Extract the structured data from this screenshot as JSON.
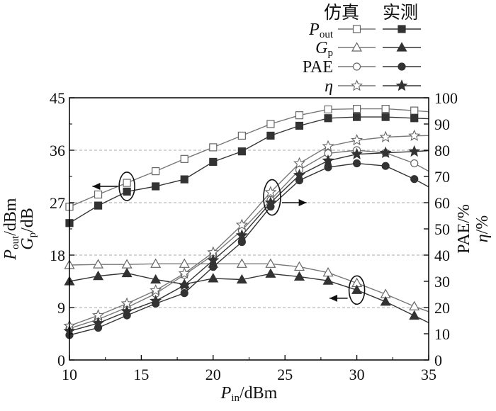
{
  "chart_data": {
    "type": "line",
    "legend": {
      "placement": "top-right",
      "headers": [
        "仿真",
        "实测"
      ],
      "entries": [
        {
          "main": "P",
          "sub": "out",
          "italic": true
        },
        {
          "main": "G",
          "sub": "p",
          "italic": true
        },
        {
          "main": "PAE",
          "sub": "",
          "italic": false
        },
        {
          "main": "η",
          "sub": "",
          "italic": true
        }
      ]
    },
    "axes": {
      "x": {
        "label_main": "P",
        "label_sub": "in",
        "label_unit": "/dBm",
        "range": [
          10,
          35
        ],
        "ticks": [
          10,
          15,
          20,
          25,
          30,
          35
        ]
      },
      "y_left": {
        "label1_main": "P",
        "label1_sub": "out",
        "label1_unit": "/dBm",
        "label2_main": "G",
        "label2_sub": "p",
        "label2_unit": "/dB",
        "range": [
          0,
          45
        ],
        "ticks": [
          0,
          9,
          18,
          27,
          36,
          45
        ]
      },
      "y_right": {
        "label1": "PAE/%",
        "label2_main": "η",
        "label2_unit": "/%",
        "range": [
          0,
          100
        ],
        "ticks": [
          0,
          10,
          20,
          30,
          40,
          50,
          60,
          70,
          80,
          90,
          100
        ]
      }
    },
    "grid": {
      "horizontal_dashed_at_left_values": [
        9,
        18,
        27,
        36
      ]
    },
    "colors": {
      "simulated_line": "#777777",
      "measured_line": "#333333",
      "marker_fill": "#333333",
      "annotation": "#111111"
    },
    "series": [
      {
        "name": "P_out",
        "group": "仿真",
        "axis": "left",
        "marker": "open-square",
        "x": [
          10,
          12,
          14,
          16,
          18,
          20,
          22,
          24,
          26,
          28,
          30,
          32,
          34,
          35
        ],
        "y": [
          26.3,
          28.4,
          30.4,
          32.4,
          34.5,
          36.5,
          38.5,
          40.5,
          42.0,
          43.0,
          43.1,
          43.1,
          42.8,
          42.6
        ]
      },
      {
        "name": "P_out",
        "group": "实测",
        "axis": "left",
        "marker": "filled-square",
        "x": [
          10,
          12,
          14,
          16,
          18,
          20,
          22,
          24,
          26,
          28,
          30,
          32,
          34,
          35
        ],
        "y": [
          23.5,
          26.5,
          28.9,
          29.8,
          31.0,
          34.0,
          35.8,
          38.5,
          40.2,
          41.5,
          41.7,
          41.7,
          41.5,
          41.4
        ]
      },
      {
        "name": "G_p",
        "group": "仿真",
        "axis": "left",
        "marker": "open-triangle",
        "x": [
          10,
          12,
          14,
          16,
          18,
          20,
          22,
          24,
          26,
          28,
          30,
          32,
          34,
          35
        ],
        "y": [
          16.3,
          16.4,
          16.4,
          16.5,
          16.5,
          16.5,
          16.5,
          16.5,
          16.0,
          15.0,
          13.2,
          11.3,
          9.2,
          8.3
        ]
      },
      {
        "name": "G_p",
        "group": "实测",
        "axis": "left",
        "marker": "filled-triangle",
        "x": [
          10,
          12,
          14,
          16,
          18,
          20,
          22,
          24,
          26,
          28,
          30,
          32,
          34,
          35
        ],
        "y": [
          13.5,
          14.4,
          14.9,
          13.8,
          13.0,
          14.0,
          13.8,
          14.8,
          14.3,
          13.6,
          12.0,
          10.0,
          7.6,
          6.4
        ]
      },
      {
        "name": "PAE",
        "group": "仿真",
        "axis": "right",
        "marker": "open-circle",
        "x": [
          10,
          12,
          14,
          16,
          18,
          20,
          22,
          24,
          26,
          28,
          30,
          32,
          34,
          35
        ],
        "y": [
          12.0,
          15.5,
          20.0,
          25.3,
          32.5,
          40.0,
          49.5,
          61.0,
          72.5,
          78.8,
          80.0,
          79.0,
          75.0,
          72.0
        ]
      },
      {
        "name": "PAE",
        "group": "实测",
        "axis": "right",
        "marker": "filled-circle",
        "x": [
          10,
          12,
          14,
          16,
          18,
          20,
          22,
          24,
          26,
          28,
          30,
          32,
          34,
          35
        ],
        "y": [
          9.5,
          12.3,
          17.0,
          21.5,
          25.5,
          35.5,
          45.0,
          58.5,
          68.5,
          73.5,
          75.0,
          74.0,
          69.0,
          66.0
        ]
      },
      {
        "name": "η",
        "group": "仿真",
        "axis": "right",
        "marker": "open-star",
        "x": [
          10,
          12,
          14,
          16,
          18,
          20,
          22,
          24,
          26,
          28,
          30,
          32,
          34,
          35
        ],
        "y": [
          13.0,
          17.0,
          21.5,
          26.5,
          33.0,
          41.0,
          51.5,
          64.0,
          75.0,
          81.5,
          83.8,
          85.0,
          85.5,
          85.6
        ]
      },
      {
        "name": "η",
        "group": "实测",
        "axis": "right",
        "marker": "filled-star",
        "x": [
          10,
          12,
          14,
          16,
          18,
          20,
          22,
          24,
          26,
          28,
          30,
          32,
          34,
          35
        ],
        "y": [
          11.0,
          14.0,
          18.5,
          22.5,
          28.5,
          38.0,
          47.5,
          60.0,
          70.5,
          76.0,
          78.5,
          79.0,
          79.5,
          79.8
        ]
      }
    ]
  }
}
